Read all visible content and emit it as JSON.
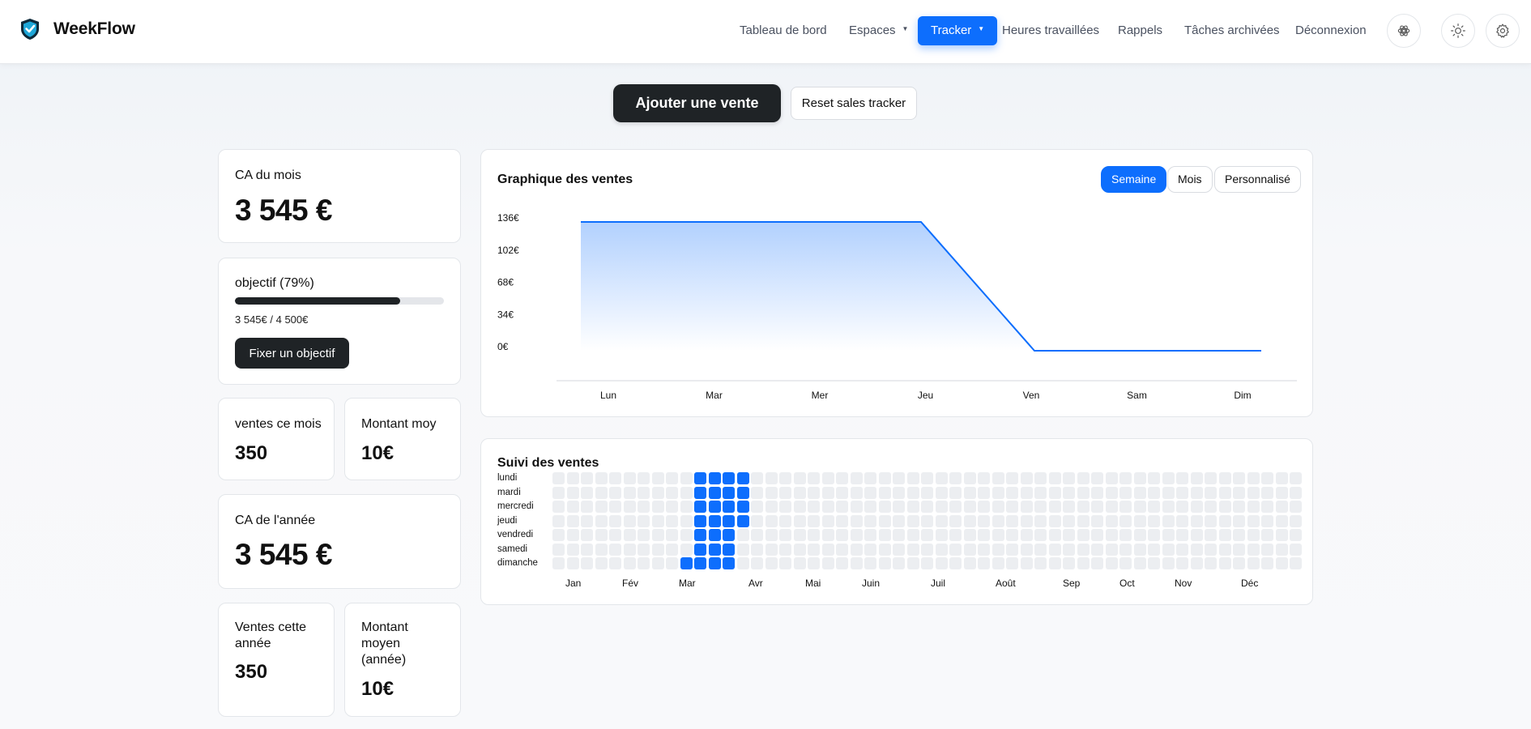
{
  "brand": {
    "name": "WeekFlow"
  },
  "nav": {
    "items": [
      {
        "label": "Tableau de bord",
        "dropdown": false,
        "active": false
      },
      {
        "label": "Espaces",
        "dropdown": true,
        "active": false
      },
      {
        "label": "Tracker",
        "dropdown": true,
        "active": true
      },
      {
        "label": "Heures travaillées",
        "dropdown": false,
        "active": false
      },
      {
        "label": "Rappels",
        "dropdown": false,
        "active": false
      },
      {
        "label": "Tâches archivées",
        "dropdown": false,
        "active": false
      },
      {
        "label": "Déconnexion",
        "dropdown": false,
        "active": false
      }
    ],
    "icons": [
      "openai-icon",
      "sun-icon",
      "gear-icon"
    ]
  },
  "actions": {
    "add_sale": "Ajouter une vente",
    "reset": "Reset sales tracker"
  },
  "stats": {
    "ca_month": {
      "label": "CA du mois",
      "value": "3 545 €"
    },
    "objective": {
      "label": "objectif (79%)",
      "progress": 0.79,
      "detail": "3 545€ / 4 500€",
      "button": "Fixer un objectif"
    },
    "sales_month": {
      "label": "ventes ce mois",
      "value": "350"
    },
    "avg_amount": {
      "label": "Montant moy",
      "value": "10€"
    },
    "ca_year": {
      "label": "CA de l'année",
      "value": "3 545 €"
    },
    "sales_year": {
      "label": "Ventes cette année",
      "value": "350"
    },
    "avg_year": {
      "label": "Montant moyen (année)",
      "value": "10€"
    }
  },
  "chart_card": {
    "title": "Graphique des ventes",
    "periods": [
      {
        "label": "Semaine",
        "active": true
      },
      {
        "label": "Mois",
        "active": false
      },
      {
        "label": "Personnalisé",
        "active": false
      }
    ]
  },
  "chart_data": {
    "type": "area",
    "title": "Graphique des ventes",
    "categories": [
      "Lun",
      "Mar",
      "Mer",
      "Jeu",
      "Ven",
      "Sam",
      "Dim"
    ],
    "values": [
      136,
      136,
      136,
      136,
      0,
      0,
      0
    ],
    "yticks": [
      "136€",
      "102€",
      "68€",
      "34€",
      "0€"
    ],
    "ylim": [
      0,
      136
    ],
    "xlabel": "",
    "ylabel": "",
    "grid": false,
    "color": "#0d6efd"
  },
  "heatmap": {
    "title": "Suivi des ventes",
    "days": [
      "lundi",
      "mardi",
      "mercredi",
      "jeudi",
      "vendredi",
      "samedi",
      "dimanche"
    ],
    "months": [
      "Jan",
      "Fév",
      "Mar",
      "Avr",
      "Mai",
      "Juin",
      "Juil",
      "Août",
      "Sep",
      "Oct",
      "Nov",
      "Déc"
    ],
    "weeks": 53,
    "active_color": "#0d6efd",
    "inactive_color": "#eceef1",
    "active_cells": [
      [
        9,
        6
      ],
      [
        10,
        0
      ],
      [
        10,
        1
      ],
      [
        10,
        2
      ],
      [
        10,
        3
      ],
      [
        10,
        4
      ],
      [
        10,
        5
      ],
      [
        10,
        6
      ],
      [
        11,
        0
      ],
      [
        11,
        1
      ],
      [
        11,
        2
      ],
      [
        11,
        3
      ],
      [
        11,
        4
      ],
      [
        11,
        5
      ],
      [
        11,
        6
      ],
      [
        12,
        0
      ],
      [
        12,
        1
      ],
      [
        12,
        2
      ],
      [
        12,
        3
      ],
      [
        12,
        4
      ],
      [
        12,
        5
      ],
      [
        12,
        6
      ],
      [
        13,
        0
      ],
      [
        13,
        1
      ],
      [
        13,
        2
      ],
      [
        13,
        3
      ]
    ]
  }
}
